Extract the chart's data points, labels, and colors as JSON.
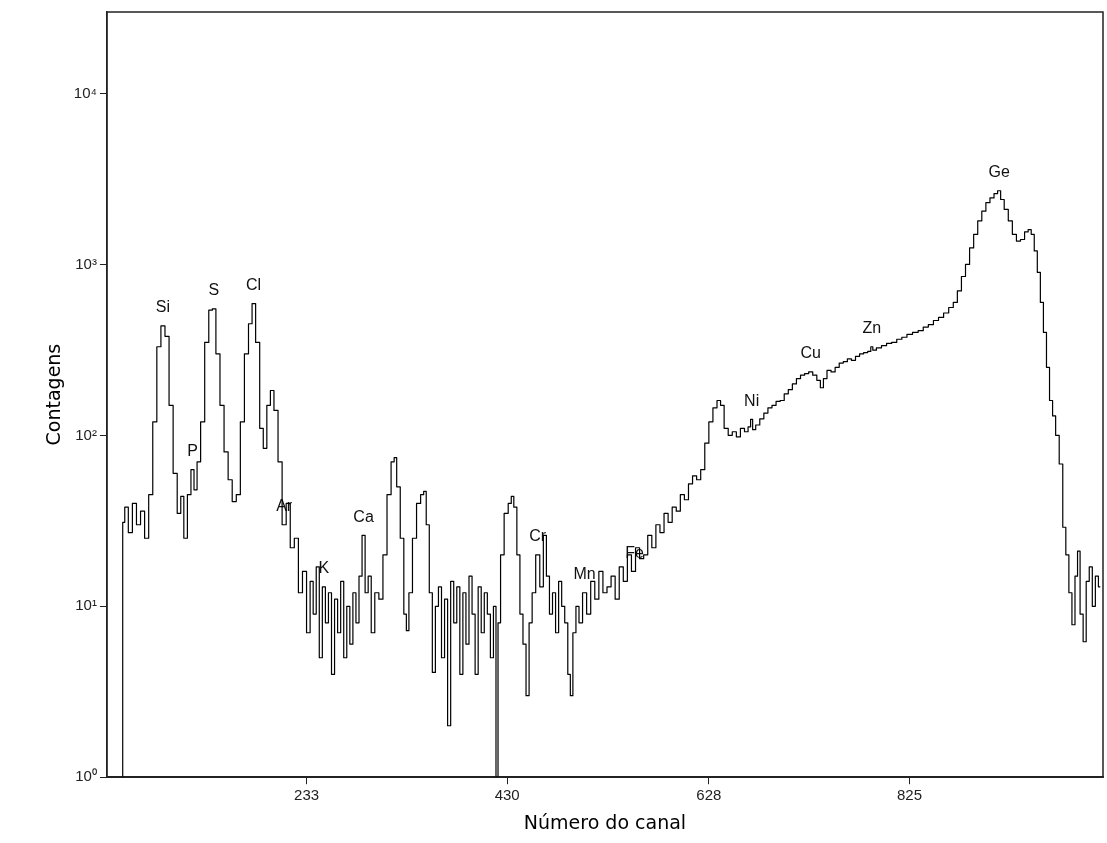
{
  "chart_data": {
    "type": "step",
    "xlabel": "Número do canal",
    "ylabel": "Contagens",
    "xlim": [
      37,
      1015
    ],
    "xticks": [
      233,
      430,
      628,
      825
    ],
    "ylim": [
      1,
      30000
    ],
    "log": "y",
    "yticks": [
      {
        "value": 1,
        "label": "10⁰"
      },
      {
        "value": 10,
        "label": "10¹"
      },
      {
        "value": 100,
        "label": "10²"
      },
      {
        "value": 1000,
        "label": "10³"
      },
      {
        "value": 10000,
        "label": "10⁴"
      }
    ],
    "grid": false,
    "legend": false,
    "marker": "none",
    "line_style": "solid",
    "x": [
      52,
      53,
      56,
      60,
      64,
      68,
      72,
      76,
      80,
      84,
      88,
      92,
      96,
      100,
      104,
      108,
      111,
      114,
      118,
      121,
      124,
      127,
      131,
      135,
      139,
      142,
      146,
      150,
      154,
      158,
      162,
      166,
      170,
      174,
      178,
      181,
      185,
      189,
      192,
      196,
      199,
      203,
      207,
      211,
      215,
      219,
      223,
      227,
      231,
      235,
      238,
      241,
      244,
      247,
      250,
      253,
      256,
      259,
      262,
      265,
      268,
      271,
      274,
      277,
      280,
      283,
      286,
      289,
      292,
      295,
      298,
      302,
      306,
      310,
      314,
      318,
      320,
      323,
      327,
      330,
      332,
      335,
      339,
      343,
      347,
      349,
      352,
      355,
      358,
      361,
      364,
      367,
      370,
      373,
      376,
      379,
      382,
      385,
      388,
      391,
      394,
      397,
      400,
      403,
      406,
      409,
      412,
      415,
      418,
      420,
      422,
      425,
      429,
      433,
      435,
      438,
      441,
      444,
      447,
      450,
      453,
      456,
      460,
      464,
      467,
      470,
      473,
      476,
      479,
      482,
      485,
      488,
      491,
      493,
      496,
      499,
      502,
      506,
      510,
      514,
      518,
      522,
      526,
      530,
      534,
      538,
      542,
      546,
      550,
      554,
      558,
      562,
      566,
      570,
      574,
      578,
      582,
      586,
      590,
      594,
      598,
      602,
      606,
      610,
      614,
      618,
      622,
      626,
      630,
      634,
      638,
      641,
      645,
      649,
      653,
      657,
      661,
      665,
      668,
      670,
      672,
      676,
      680,
      684,
      688,
      692,
      696,
      700,
      704,
      708,
      712,
      716,
      720,
      724,
      728,
      732,
      736,
      739,
      742,
      746,
      750,
      754,
      758,
      762,
      766,
      770,
      774,
      778,
      782,
      786,
      788,
      790,
      795,
      800,
      805,
      810,
      815,
      820,
      825,
      831,
      836,
      841,
      846,
      851,
      856,
      861,
      866,
      870,
      874,
      878,
      882,
      886,
      890,
      894,
      898,
      902,
      906,
      910,
      913,
      916,
      920,
      924,
      928,
      932,
      936,
      940,
      943,
      946,
      949,
      952,
      955,
      958,
      961,
      964,
      967,
      970,
      974,
      977,
      980,
      983,
      986,
      989,
      991,
      994,
      997,
      1000,
      1003,
      1006,
      1009,
      1012
    ],
    "series": [
      {
        "color": "#000000",
        "values": [
          1,
          31,
          38,
          27,
          40,
          30,
          36,
          25,
          45,
          120,
          330,
          437,
          380,
          150,
          60,
          35,
          44,
          25,
          45,
          63,
          48,
          70,
          120,
          350,
          540,
          550,
          300,
          150,
          80,
          55,
          41,
          45,
          120,
          300,
          450,
          590,
          350,
          110,
          84,
          150,
          183,
          140,
          70,
          30,
          40,
          22,
          25,
          12,
          16,
          7,
          14,
          9,
          17,
          5,
          13,
          8,
          12,
          4,
          11,
          7,
          14,
          5,
          10,
          6,
          12,
          8,
          15,
          26,
          12,
          15,
          7,
          12,
          11,
          20,
          45,
          70,
          74,
          50,
          25,
          9,
          7.2,
          12,
          25,
          40,
          45,
          47,
          30,
          12,
          4.1,
          10,
          13,
          5,
          11,
          2,
          14,
          8,
          13,
          4,
          12,
          6,
          15,
          9,
          4,
          13,
          7,
          12,
          9,
          5,
          10,
          1,
          8,
          20,
          35,
          40,
          44,
          38,
          20,
          9,
          6,
          3,
          8,
          12,
          20,
          13,
          26,
          15,
          9,
          12,
          7,
          14,
          10,
          8,
          4,
          3,
          7,
          10,
          8,
          12,
          9,
          14,
          11,
          16,
          12,
          13,
          15,
          11,
          17,
          14,
          20,
          16,
          22,
          19,
          20,
          26,
          22,
          30,
          27,
          35,
          31,
          38,
          36,
          45,
          42,
          52,
          58,
          55,
          63,
          90,
          120,
          145,
          160,
          150,
          110,
          100,
          105,
          98,
          110,
          105,
          112,
          124,
          108,
          115,
          125,
          135,
          145,
          150,
          158,
          160,
          175,
          185,
          200,
          215,
          225,
          230,
          235,
          225,
          210,
          190,
          215,
          240,
          235,
          250,
          265,
          270,
          280,
          275,
          290,
          300,
          305,
          310,
          330,
          315,
          325,
          335,
          345,
          350,
          365,
          375,
          390,
          400,
          410,
          430,
          445,
          470,
          490,
          520,
          560,
          600,
          700,
          850,
          1000,
          1250,
          1500,
          1800,
          2050,
          2300,
          2450,
          2600,
          2700,
          2400,
          2100,
          1800,
          1500,
          1370,
          1400,
          1550,
          1600,
          1500,
          1200,
          900,
          600,
          400,
          250,
          160,
          130,
          100,
          68,
          29,
          20,
          12,
          7.8,
          15,
          21,
          9,
          6.2,
          14,
          17,
          10,
          15,
          13
        ]
      }
    ],
    "annotations": [
      {
        "text": "Si",
        "x": 92,
        "y": 437
      },
      {
        "text": "P",
        "x": 121,
        "y": 63
      },
      {
        "text": "S",
        "x": 142,
        "y": 550
      },
      {
        "text": "Cl",
        "x": 181,
        "y": 590
      },
      {
        "text": "Ar",
        "x": 211,
        "y": 30
      },
      {
        "text": "K",
        "x": 250,
        "y": 13
      },
      {
        "text": "Ca",
        "x": 289,
        "y": 26
      },
      {
        "text": "Cr",
        "x": 460,
        "y": 20
      },
      {
        "text": "Mn",
        "x": 506,
        "y": 12
      },
      {
        "text": "Fe",
        "x": 555,
        "y": 16
      },
      {
        "text": "Ni",
        "x": 670,
        "y": 124
      },
      {
        "text": "Cu",
        "x": 728,
        "y": 235
      },
      {
        "text": "Zn",
        "x": 788,
        "y": 330
      },
      {
        "text": "Ge",
        "x": 913,
        "y": 2700
      }
    ]
  }
}
